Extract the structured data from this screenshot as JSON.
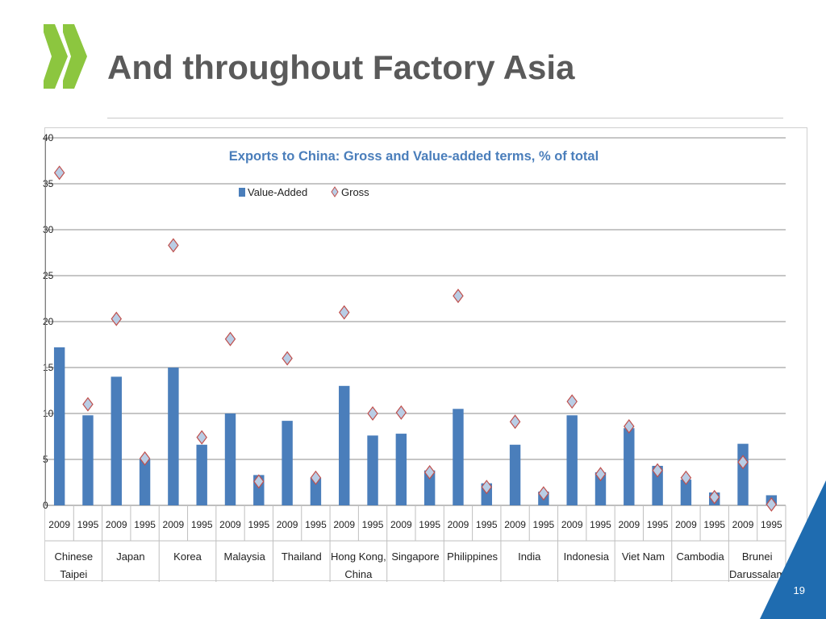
{
  "slide": {
    "title": "And throughout Factory Asia",
    "page_number": "19",
    "accent_color": "#1f6cb0",
    "logo_color": "#8cc63f",
    "logo_dark_color": "#6b6b6b"
  },
  "chart_data": {
    "type": "bar",
    "title": "Exports to China: Gross and Value-added terms, % of total",
    "xlabel": "",
    "ylabel": "",
    "ylim": [
      0,
      40
    ],
    "yticks": [
      0,
      5,
      10,
      15,
      20,
      25,
      30,
      35,
      40
    ],
    "grid": true,
    "legend_position": "top-center",
    "groups": [
      "Chinese Taipei",
      "Japan",
      "Korea",
      "Malaysia",
      "Thailand",
      "Hong Kong, China",
      "Singapore",
      "Philippines",
      "India",
      "Indonesia",
      "Viet Nam",
      "Cambodia",
      "Brunei Darussalam"
    ],
    "group_label_lines": [
      [
        "Chinese",
        "Taipei"
      ],
      [
        "Japan"
      ],
      [
        "Korea"
      ],
      [
        "Malaysia"
      ],
      [
        "Thailand"
      ],
      [
        "Hong Kong,",
        "China"
      ],
      [
        "Singapore"
      ],
      [
        "Philippines"
      ],
      [
        "India"
      ],
      [
        "Indonesia"
      ],
      [
        "Viet Nam"
      ],
      [
        "Cambodia"
      ],
      [
        "Brunei",
        "Darussalam"
      ]
    ],
    "years": [
      "2009",
      "1995"
    ],
    "categories": [
      "2009",
      "1995",
      "2009",
      "1995",
      "2009",
      "1995",
      "2009",
      "1995",
      "2009",
      "1995",
      "2009",
      "1995",
      "2009",
      "1995",
      "2009",
      "1995",
      "2009",
      "1995",
      "2009",
      "1995",
      "2009",
      "1995",
      "2009",
      "1995",
      "2009",
      "1995"
    ],
    "series": [
      {
        "name": "Value-Added",
        "marker": "bar",
        "color": "#4a7ebb",
        "values": [
          17.2,
          9.8,
          14.0,
          5.0,
          15.0,
          6.6,
          10.0,
          3.3,
          9.2,
          3.0,
          13.0,
          7.6,
          7.8,
          3.8,
          10.5,
          2.4,
          6.6,
          1.5,
          9.8,
          3.6,
          8.4,
          4.3,
          2.8,
          1.4,
          6.7,
          1.1
        ]
      },
      {
        "name": "Gross",
        "marker": "diamond",
        "color": "#b9cde5",
        "edge_color": "#c0504d",
        "values": [
          36.2,
          11.0,
          20.3,
          5.1,
          28.3,
          7.4,
          18.1,
          2.6,
          16.0,
          3.0,
          21.0,
          10.0,
          10.1,
          3.6,
          22.8,
          2.0,
          9.1,
          1.3,
          11.3,
          3.4,
          8.6,
          3.8,
          3.0,
          0.9,
          4.7,
          0.1
        ]
      }
    ]
  }
}
